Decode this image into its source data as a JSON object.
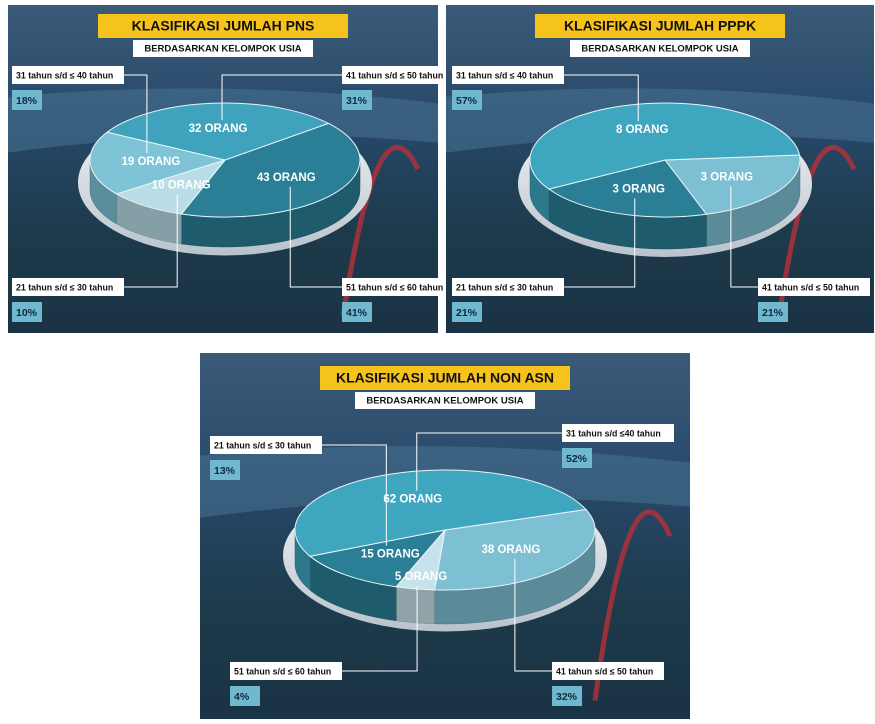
{
  "chart_data": [
    {
      "type": "pie",
      "title": "KLASIFIKASI JUMLAH PNS",
      "subtitle": "BERDASARKAN KELOMPOK USIA",
      "categories": [
        "51 tahun s/d ≤ 60 tahun",
        "21 tahun s/d ≤ 30 tahun",
        "31 tahun s/d ≤ 40 tahun",
        "41 tahun s/d ≤ 50 tahun"
      ],
      "values": [
        43,
        10,
        19,
        32
      ],
      "value_labels": [
        "43 ORANG",
        "10 ORANG",
        "19 ORANG",
        "32 ORANG"
      ],
      "percent_labels": [
        "41%",
        "10%",
        "18%",
        "31%"
      ],
      "colors": [
        "#2a7f96",
        "#b9dde6",
        "#7ec4d6",
        "#3fa3bd"
      ]
    },
    {
      "type": "pie",
      "title": "KLASIFIKASI JUMLAH PPPK",
      "subtitle": "BERDASARKAN KELOMPOK USIA",
      "categories": [
        "41 tahun s/d ≤ 50 tahun",
        "21 tahun s/d ≤ 30 tahun",
        "31 tahun s/d ≤ 40 tahun"
      ],
      "values": [
        3,
        3,
        8
      ],
      "value_labels": [
        "3 ORANG",
        "3 ORANG",
        "8 ORANG"
      ],
      "percent_labels": [
        "21%",
        "21%",
        "57%"
      ],
      "colors": [
        "#7ec0d3",
        "#2a7f96",
        "#3fa6c0"
      ]
    },
    {
      "type": "pie",
      "title": "KLASIFIKASI JUMLAH NON ASN",
      "subtitle": "BERDASARKAN KELOMPOK USIA",
      "categories": [
        "41 tahun s/d ≤ 50 tahun",
        "51 tahun s/d ≤ 60 tahun",
        "21 tahun s/d ≤ 30 tahun",
        "31 tahun s/d ≤40 tahun"
      ],
      "values": [
        38,
        5,
        15,
        62
      ],
      "value_labels": [
        "38 ORANG",
        "5 ORANG",
        "15 ORANG",
        "62 ORANG"
      ],
      "percent_labels": [
        "32%",
        "4%",
        "13%",
        "52%"
      ],
      "colors": [
        "#7ec0d3",
        "#c6e2ea",
        "#2a7f96",
        "#3fa6c0"
      ]
    }
  ]
}
